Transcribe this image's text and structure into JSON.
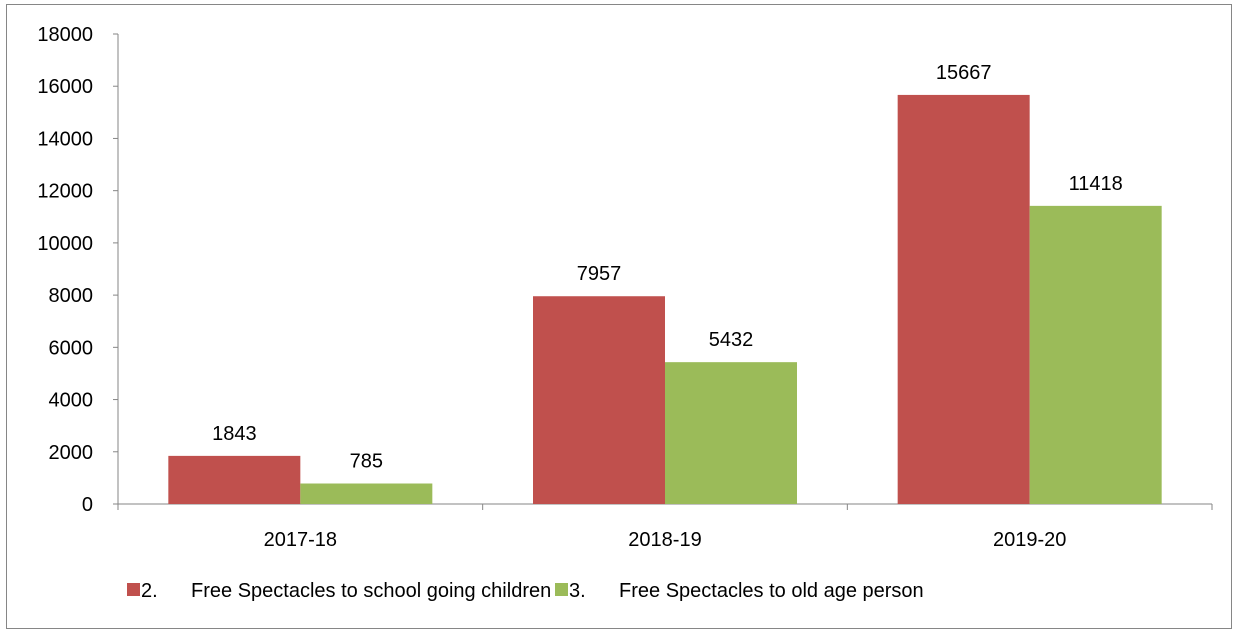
{
  "chart_data": {
    "type": "bar",
    "title": "",
    "xlabel": "",
    "ylabel": "",
    "categories": [
      "2017-18",
      "2018-19",
      "2019-20"
    ],
    "ylim": [
      0,
      18000
    ],
    "yticks": [
      0,
      2000,
      4000,
      6000,
      8000,
      10000,
      12000,
      14000,
      16000,
      18000
    ],
    "grid": false,
    "legend_position": "bottom",
    "series": [
      {
        "name": "2.      Free Spectacles to school going children",
        "color": "#C0504D",
        "values": [
          1843,
          7957,
          15667
        ]
      },
      {
        "name": "3.      Free Spectacles to old age person",
        "color": "#9BBB59",
        "values": [
          785,
          5432,
          11418
        ]
      }
    ]
  }
}
